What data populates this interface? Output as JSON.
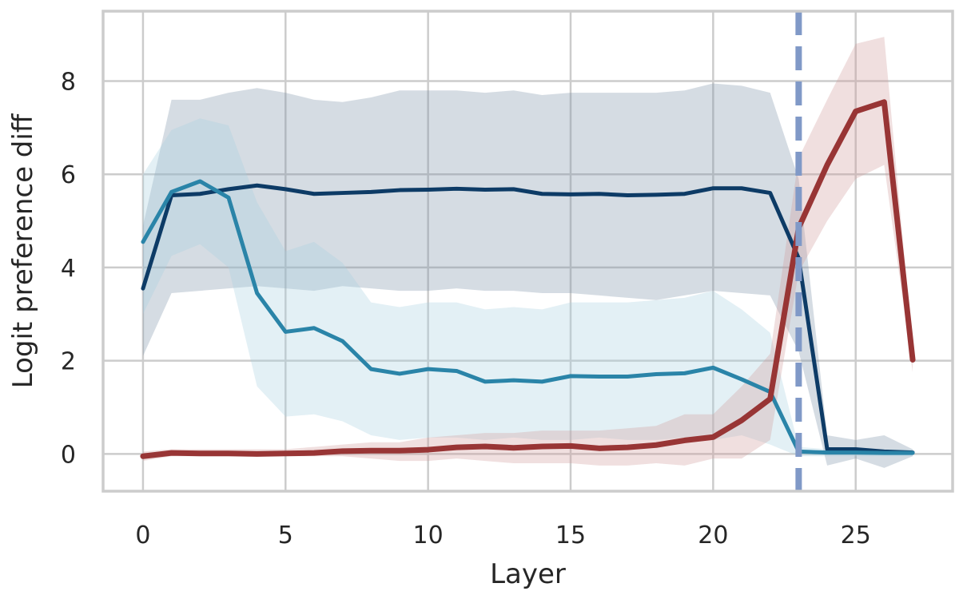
{
  "chart_data": {
    "type": "line",
    "title": "",
    "xlabel": "Layer",
    "ylabel": "Logit preference diff",
    "xlim": [
      -1.4,
      28.4
    ],
    "ylim": [
      -0.8,
      9.5
    ],
    "xticks": [
      0,
      5,
      10,
      15,
      20,
      25
    ],
    "yticks": [
      0,
      2,
      4,
      6,
      8
    ],
    "xtick_labels": [
      "0",
      "5",
      "10",
      "15",
      "20",
      "25"
    ],
    "ytick_labels": [
      "0",
      "2",
      "4",
      "6",
      "8"
    ],
    "grid": true,
    "legend": "none",
    "vline": {
      "x": 23,
      "style": "dashed",
      "color": "#8099c7"
    },
    "series": [
      {
        "color": "#0d3b66",
        "band_color": "#7d92a7",
        "x": [
          0,
          1,
          2,
          3,
          4,
          5,
          6,
          7,
          8,
          9,
          10,
          11,
          12,
          13,
          14,
          15,
          16,
          17,
          18,
          19,
          20,
          21,
          22,
          23,
          24,
          25,
          26,
          27
        ],
        "y": [
          3.55,
          5.55,
          5.58,
          5.68,
          5.76,
          5.68,
          5.58,
          5.6,
          5.62,
          5.66,
          5.67,
          5.69,
          5.67,
          5.68,
          5.58,
          5.57,
          5.58,
          5.55,
          5.56,
          5.58,
          5.7,
          5.7,
          5.6,
          4.2,
          0.1,
          0.1,
          0.05,
          0.03
        ],
        "lower": [
          2.1,
          3.45,
          3.5,
          3.55,
          3.6,
          3.55,
          3.5,
          3.6,
          3.55,
          3.5,
          3.5,
          3.55,
          3.5,
          3.5,
          3.45,
          3.45,
          3.4,
          3.35,
          3.3,
          3.4,
          3.5,
          3.45,
          3.4,
          2.2,
          -0.25,
          -0.1,
          -0.3,
          -0.05
        ],
        "upper": [
          4.9,
          7.6,
          7.6,
          7.75,
          7.85,
          7.75,
          7.6,
          7.55,
          7.65,
          7.8,
          7.8,
          7.8,
          7.75,
          7.8,
          7.7,
          7.75,
          7.75,
          7.75,
          7.75,
          7.8,
          7.95,
          7.9,
          7.75,
          5.9,
          0.4,
          0.3,
          0.4,
          0.1
        ]
      },
      {
        "color": "#2a84a8",
        "band_color": "#a9cfe0",
        "x": [
          0,
          1,
          2,
          3,
          4,
          5,
          6,
          7,
          8,
          9,
          10,
          11,
          12,
          13,
          14,
          15,
          16,
          17,
          18,
          19,
          20,
          21,
          22,
          23,
          24,
          25,
          26,
          27
        ],
        "y": [
          4.55,
          5.62,
          5.85,
          5.5,
          3.45,
          2.62,
          2.7,
          2.42,
          1.82,
          1.72,
          1.82,
          1.78,
          1.55,
          1.58,
          1.55,
          1.67,
          1.66,
          1.66,
          1.71,
          1.73,
          1.85,
          1.6,
          1.33,
          0.05,
          0.03,
          0.03,
          0.02,
          0.02
        ],
        "lower": [
          3.0,
          4.25,
          4.5,
          4.0,
          1.45,
          0.8,
          0.85,
          0.7,
          0.4,
          0.3,
          0.35,
          0.35,
          0.3,
          0.35,
          0.3,
          0.3,
          0.35,
          0.3,
          0.3,
          0.35,
          0.3,
          0.4,
          0.2,
          -0.05,
          -0.05,
          -0.05,
          -0.05,
          -0.05
        ],
        "upper": [
          6.0,
          6.95,
          7.2,
          7.05,
          5.4,
          4.35,
          4.55,
          4.1,
          3.25,
          3.15,
          3.25,
          3.25,
          3.1,
          3.15,
          3.1,
          3.25,
          3.25,
          3.25,
          3.3,
          3.35,
          3.5,
          3.1,
          2.6,
          0.15,
          0.1,
          0.1,
          0.1,
          0.1
        ]
      },
      {
        "color": "#983535",
        "band_color": "#cf9a9a",
        "x": [
          0,
          1,
          2,
          3,
          4,
          5,
          6,
          7,
          8,
          9,
          10,
          11,
          12,
          13,
          14,
          15,
          16,
          17,
          18,
          19,
          20,
          21,
          22,
          23,
          24,
          25,
          26,
          27
        ],
        "y": [
          -0.05,
          0.02,
          0.01,
          0.01,
          0.0,
          0.01,
          0.02,
          0.06,
          0.07,
          0.07,
          0.09,
          0.14,
          0.16,
          0.13,
          0.16,
          0.17,
          0.12,
          0.14,
          0.19,
          0.29,
          0.36,
          0.72,
          1.18,
          4.85,
          6.2,
          7.35,
          7.55,
          2.02
        ],
        "lower": [
          -0.15,
          -0.05,
          -0.05,
          -0.05,
          -0.05,
          -0.05,
          -0.05,
          -0.05,
          -0.1,
          -0.15,
          -0.15,
          -0.1,
          -0.15,
          -0.2,
          -0.2,
          -0.2,
          -0.25,
          -0.25,
          -0.2,
          -0.25,
          -0.1,
          -0.1,
          0.3,
          3.9,
          5.0,
          5.9,
          6.2,
          1.75
        ],
        "upper": [
          0.05,
          0.1,
          0.1,
          0.1,
          0.1,
          0.1,
          0.15,
          0.2,
          0.25,
          0.25,
          0.35,
          0.4,
          0.45,
          0.45,
          0.5,
          0.5,
          0.5,
          0.55,
          0.6,
          0.85,
          0.85,
          1.45,
          2.15,
          6.35,
          7.6,
          8.8,
          8.95,
          2.3
        ]
      }
    ]
  }
}
